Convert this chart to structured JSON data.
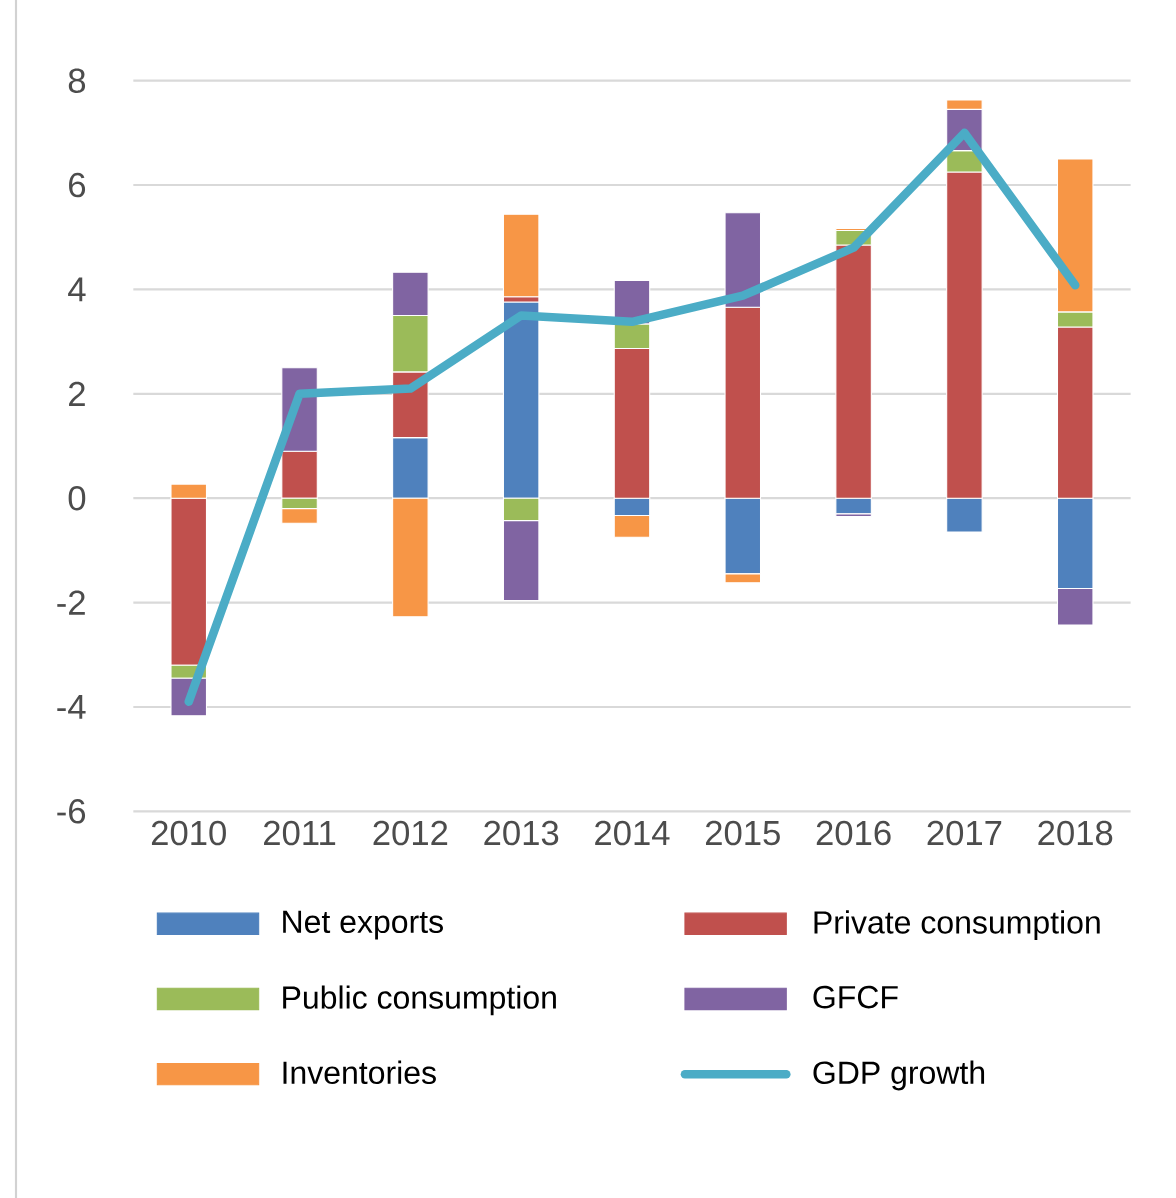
{
  "chart_data": {
    "type": "bar",
    "stacked": true,
    "grid": "y",
    "legend": "bottom",
    "categories": [
      "2010",
      "2011",
      "2012",
      "2013",
      "2014",
      "2015",
      "2016",
      "2017",
      "2018"
    ],
    "ylim": [
      -6,
      8
    ],
    "yticks": [
      -6,
      -4,
      -2,
      0,
      2,
      4,
      6,
      8
    ],
    "series": [
      {
        "name": "Net exports",
        "color": "#4f81bd",
        "values": [
          null,
          null,
          1.16,
          3.76,
          -0.33,
          -1.45,
          -0.3,
          -0.65,
          -1.73
        ]
      },
      {
        "name": "Private consumption",
        "color": "#c0504d",
        "values": [
          -3.2,
          0.9,
          1.26,
          0.1,
          2.87,
          3.66,
          4.85,
          6.25,
          3.28
        ]
      },
      {
        "name": "Public consumption",
        "color": "#9bbb59",
        "values": [
          -0.25,
          -0.2,
          1.08,
          -0.43,
          0.47,
          null,
          0.28,
          0.41,
          0.29
        ]
      },
      {
        "name": "GFCF",
        "color": "#8064a2",
        "values": [
          -0.72,
          1.6,
          0.83,
          -1.53,
          0.83,
          1.81,
          -0.05,
          0.79,
          -0.7
        ]
      },
      {
        "name": "Inventories",
        "color": "#f79646",
        "values": [
          0.27,
          -0.28,
          -2.27,
          1.58,
          -0.42,
          -0.17,
          0.04,
          0.18,
          2.93
        ]
      },
      {
        "name": "GDP growth",
        "color": "#4bacc6",
        "type": "line",
        "line_style": "solid",
        "values": [
          -3.9,
          2.0,
          2.1,
          3.5,
          3.38,
          3.88,
          4.8,
          7.0,
          4.08
        ]
      }
    ]
  }
}
